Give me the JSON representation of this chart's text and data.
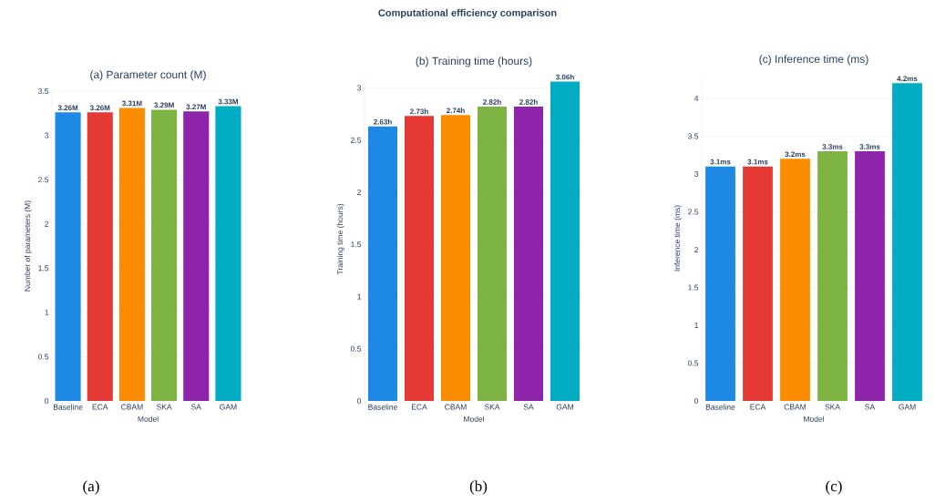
{
  "chart_data": [
    {
      "type": "bar",
      "title": "(a) Parameter count (M)",
      "xlabel": "Model",
      "ylabel": "Number of parameters (M)",
      "categories": [
        "Baseline",
        "ECA",
        "CBAM",
        "SKA",
        "SA",
        "GAM"
      ],
      "values": [
        3.26,
        3.26,
        3.31,
        3.29,
        3.27,
        3.33
      ],
      "colors": [
        "#1e88e5",
        "#e53935",
        "#fb8c00",
        "#7cb342",
        "#8e24aa",
        "#00acc1"
      ],
      "value_labels": [
        "3.26M",
        "3.26M",
        "3.31M",
        "3.29M",
        "3.27M",
        "3.33M"
      ],
      "ylim": [
        0,
        3.5
      ],
      "yticks": [
        0,
        0.5,
        1,
        1.5,
        2,
        2.5,
        3,
        3.5
      ],
      "grid": "y",
      "annotations": [
        "Computational efficiency comparison",
        "(a)"
      ]
    },
    {
      "type": "bar",
      "title": "(b) Training time (hours)",
      "xlabel": "Model",
      "ylabel": "Training time (hours)",
      "categories": [
        "Baseline",
        "ECA",
        "CBAM",
        "SKA",
        "SA",
        "GAM"
      ],
      "values": [
        2.63,
        2.73,
        2.74,
        2.82,
        2.82,
        3.06
      ],
      "colors": [
        "#1e88e5",
        "#e53935",
        "#fb8c00",
        "#7cb342",
        "#8e24aa",
        "#00acc1"
      ],
      "value_labels": [
        "2.63h",
        "2.73h",
        "2.74h",
        "2.82h",
        "2.82h",
        "3.06h"
      ],
      "ylim": [
        0,
        3.1
      ],
      "yticks": [
        0,
        0.5,
        1,
        1.5,
        2,
        2.5,
        3
      ],
      "grid": "y",
      "annotations": [
        "(b)"
      ]
    },
    {
      "type": "bar",
      "title": "(c) Inference time (ms)",
      "xlabel": "Model",
      "ylabel": "Inference time (ms)",
      "categories": [
        "Baseline",
        "ECA",
        "CBAM",
        "SKA",
        "SA",
        "GAM"
      ],
      "values": [
        3.1,
        3.1,
        3.2,
        3.3,
        3.3,
        4.2
      ],
      "colors": [
        "#1e88e5",
        "#e53935",
        "#fb8c00",
        "#7cb342",
        "#8e24aa",
        "#00acc1"
      ],
      "value_labels": [
        "3.1ms",
        "3.1ms",
        "3.2ms",
        "3.3ms",
        "3.3ms",
        "4.2ms"
      ],
      "ylim": [
        0,
        4.3
      ],
      "yticks": [
        0,
        0.5,
        1,
        1.5,
        2,
        2.5,
        3,
        3.5,
        4
      ],
      "grid": "y",
      "annotations": [
        "(c)"
      ]
    }
  ]
}
